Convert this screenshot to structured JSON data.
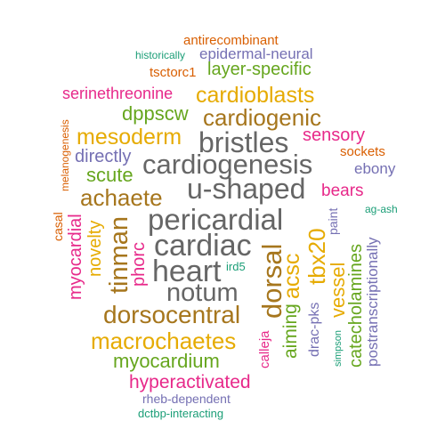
{
  "palette": {
    "orange": "#d95f02",
    "purple": "#7570b3",
    "magenta": "#e7298a",
    "green": "#66a61e",
    "gold": "#e6ab02",
    "brown": "#a6761d",
    "gray": "#666666",
    "teal": "#1b9e77"
  },
  "words": [
    {
      "id": "antirecombinant",
      "text": "antirecombinant",
      "color": "orange"
    },
    {
      "id": "historically",
      "text": "historically",
      "color": "teal"
    },
    {
      "id": "epidermal-neural",
      "text": "epidermal-neural",
      "color": "purple"
    },
    {
      "id": "tsctorc1",
      "text": "tsctorc1",
      "color": "orange"
    },
    {
      "id": "layer-specific",
      "text": "layer-specific",
      "color": "green"
    },
    {
      "id": "serinethreonine",
      "text": "serinethreonine",
      "color": "magenta"
    },
    {
      "id": "cardioblasts",
      "text": "cardioblasts",
      "color": "gold"
    },
    {
      "id": "dppscw",
      "text": "dppscw",
      "color": "green"
    },
    {
      "id": "cardiogenic",
      "text": "cardiogenic",
      "color": "brown"
    },
    {
      "id": "melanogenesis",
      "text": "melanogenesis",
      "color": "orange"
    },
    {
      "id": "mesoderm",
      "text": "mesoderm",
      "color": "gold"
    },
    {
      "id": "bristles",
      "text": "bristles",
      "color": "gray"
    },
    {
      "id": "sensory",
      "text": "sensory",
      "color": "magenta"
    },
    {
      "id": "directly",
      "text": "directly",
      "color": "purple"
    },
    {
      "id": "sockets",
      "text": "sockets",
      "color": "orange"
    },
    {
      "id": "cardiogenesis",
      "text": "cardiogenesis",
      "color": "gray"
    },
    {
      "id": "ebony",
      "text": "ebony",
      "color": "purple"
    },
    {
      "id": "scute",
      "text": "scute",
      "color": "green"
    },
    {
      "id": "achaete",
      "text": "achaete",
      "color": "brown"
    },
    {
      "id": "u-shaped",
      "text": "u-shaped",
      "color": "gray"
    },
    {
      "id": "bears",
      "text": "bears",
      "color": "magenta"
    },
    {
      "id": "ag-ash",
      "text": "ag-ash",
      "color": "teal"
    },
    {
      "id": "casal",
      "text": "casal",
      "color": "orange"
    },
    {
      "id": "pericardial",
      "text": "pericardial",
      "color": "gray"
    },
    {
      "id": "paint",
      "text": "paint",
      "color": "purple"
    },
    {
      "id": "myocardial",
      "text": "myocardial",
      "color": "magenta"
    },
    {
      "id": "novelty",
      "text": "novelty",
      "color": "gold"
    },
    {
      "id": "tinman",
      "text": "tinman",
      "color": "brown"
    },
    {
      "id": "phorc",
      "text": "phorc",
      "color": "magenta"
    },
    {
      "id": "cardiac",
      "text": "cardiac",
      "color": "gray"
    },
    {
      "id": "dorsal",
      "text": "dorsal",
      "color": "brown"
    },
    {
      "id": "tbx20",
      "text": "tbx20",
      "color": "gold"
    },
    {
      "id": "heart",
      "text": "heart",
      "color": "gray"
    },
    {
      "id": "ird5",
      "text": "ird5",
      "color": "teal"
    },
    {
      "id": "acsc",
      "text": "acsc",
      "color": "gold"
    },
    {
      "id": "notum",
      "text": "notum",
      "color": "gray"
    },
    {
      "id": "vessel",
      "text": "vessel",
      "color": "gold"
    },
    {
      "id": "catecholamines",
      "text": "catecholamines",
      "color": "green"
    },
    {
      "id": "postranscriptionally",
      "text": "postranscriptionally",
      "color": "purple"
    },
    {
      "id": "aiming",
      "text": "aiming",
      "color": "green"
    },
    {
      "id": "drac-pks",
      "text": "drac-pks",
      "color": "purple"
    },
    {
      "id": "dorsocentral",
      "text": "dorsocentral",
      "color": "brown"
    },
    {
      "id": "simpson",
      "text": "simpson",
      "color": "teal"
    },
    {
      "id": "macrochaetes",
      "text": "macrochaetes",
      "color": "gold"
    },
    {
      "id": "calleja",
      "text": "calleja",
      "color": "magenta"
    },
    {
      "id": "myocardium",
      "text": "myocardium",
      "color": "green"
    },
    {
      "id": "hyperactivated",
      "text": "hyperactivated",
      "color": "magenta"
    },
    {
      "id": "rheb-dependent",
      "text": "rheb-dependent",
      "color": "purple"
    },
    {
      "id": "dctbp-interacting",
      "text": "dctbp-interacting",
      "color": "teal"
    }
  ]
}
